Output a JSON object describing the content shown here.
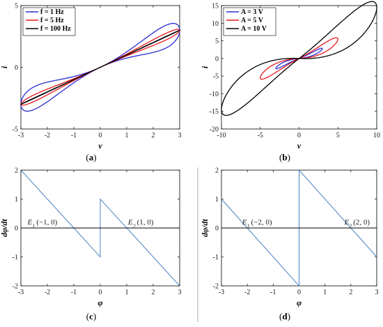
{
  "chart_data": [
    {
      "panel": "a",
      "caption_letter": "a",
      "type": "line",
      "xlabel": "v",
      "ylabel": "i",
      "xlim": [
        -3,
        3
      ],
      "ylim": [
        -5,
        5
      ],
      "xticks": [
        -3,
        -2,
        -1,
        0,
        1,
        2,
        3
      ],
      "yticks": [
        -5,
        0,
        5
      ],
      "legend_position": "top-left",
      "series": [
        {
          "name": "f = 1 Hz",
          "color": "#2b2bd0",
          "shape": "loop",
          "amplitude": 3,
          "gain": 1.0,
          "loop_width": 1.2
        },
        {
          "name": "f = 5 Hz",
          "color": "#e8191c",
          "shape": "loop",
          "amplitude": 3,
          "gain": 1.0,
          "loop_width": 0.35
        },
        {
          "name": "f = 100 Hz",
          "color": "#000000",
          "shape": "loop",
          "amplitude": 3,
          "gain": 1.0,
          "loop_width": 0.02
        }
      ]
    },
    {
      "panel": "b",
      "caption_letter": "b",
      "type": "line",
      "xlabel": "v",
      "ylabel": "i",
      "xlim": [
        -10,
        10
      ],
      "ylim": [
        -20,
        15
      ],
      "xticks": [
        -10,
        -5,
        0,
        5,
        10
      ],
      "yticks": [
        -20,
        -15,
        -10,
        -5,
        0,
        5,
        10,
        15
      ],
      "legend_position": "top-left",
      "series": [
        {
          "name": "A = 3 V",
          "color": "#2b2bd0",
          "shape": "loop",
          "amplitude": 3,
          "peak_i": 2.8,
          "loop_width": 1.0
        },
        {
          "name": "A = 5 V",
          "color": "#e8191c",
          "shape": "loop",
          "amplitude": 5,
          "peak_i": 5.5,
          "loop_width": 2.6
        },
        {
          "name": "A = 10 V",
          "color": "#000000",
          "shape": "loop",
          "amplitude": 10,
          "peak_i": 14.5,
          "loop_width": 9.0
        }
      ]
    },
    {
      "panel": "c",
      "caption_letter": "c",
      "type": "line",
      "xlabel": "φ",
      "ylabel": "dφ/dt",
      "xlim": [
        -3,
        3
      ],
      "ylim": [
        -2,
        2
      ],
      "xticks": [
        -3,
        -2,
        -1,
        0,
        1,
        2,
        3
      ],
      "yticks": [
        -2,
        -1,
        0,
        1,
        2
      ],
      "series": [
        {
          "name": "",
          "color": "#4a7fc1",
          "x": [
            -3,
            0,
            0,
            3
          ],
          "y": [
            2,
            -1,
            1,
            -2
          ]
        },
        {
          "name": "",
          "color": "#000000",
          "x": [
            -3,
            3
          ],
          "y": [
            0,
            0
          ]
        }
      ],
      "annotations": [
        {
          "base": "E",
          "sub": "1",
          "text": "(−1, 0)",
          "x": -2.75,
          "y": 0.12
        },
        {
          "base": "E",
          "sub": "2",
          "text": "(1, 0)",
          "x": 1.05,
          "y": 0.12
        }
      ]
    },
    {
      "panel": "d",
      "caption_letter": "d",
      "type": "line",
      "xlabel": "φ",
      "ylabel": "dφ/dt",
      "xlim": [
        -3,
        3
      ],
      "ylim": [
        -2,
        2
      ],
      "xticks": [
        -3,
        -2,
        -1,
        0,
        1,
        2,
        3
      ],
      "yticks": [
        -2,
        -1,
        0,
        1,
        2
      ],
      "series": [
        {
          "name": "",
          "color": "#4a7fc1",
          "x": [
            -3,
            0,
            0,
            3
          ],
          "y": [
            1,
            -2,
            2,
            -1
          ]
        },
        {
          "name": "",
          "color": "#000000",
          "x": [
            -3,
            3
          ],
          "y": [
            0,
            0
          ]
        }
      ],
      "annotations": [
        {
          "base": "E",
          "sub": "1",
          "text": "(−2, 0)",
          "x": -2.2,
          "y": 0.12
        },
        {
          "base": "E",
          "sub": "2",
          "text": "(2, 0)",
          "x": 1.75,
          "y": 0.12
        }
      ]
    }
  ]
}
